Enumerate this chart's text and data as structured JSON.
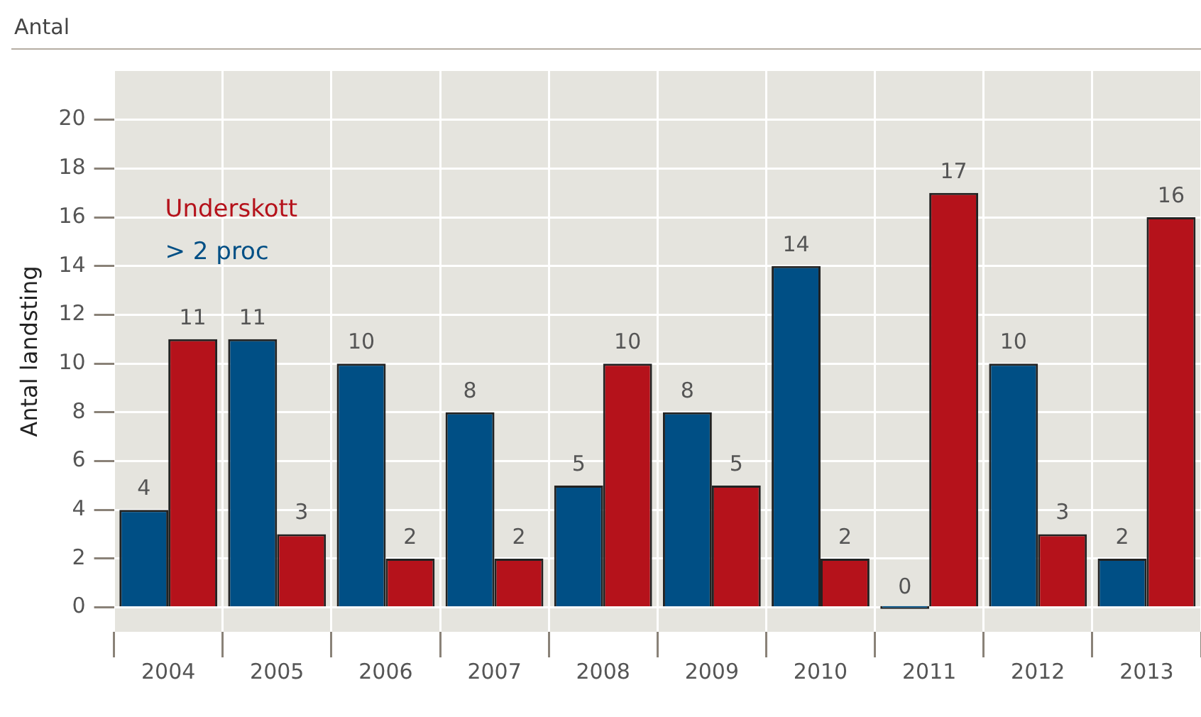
{
  "chart_data": {
    "type": "bar",
    "subtitle": "Antal",
    "ylabel": "Antal landsting",
    "categories": [
      "2004",
      "2005",
      "2006",
      "2007",
      "2008",
      "2009",
      "2010",
      "2011",
      "2012",
      "2013"
    ],
    "series": [
      {
        "name": "> 2 proc",
        "color": "#004f85",
        "values": [
          4,
          11,
          10,
          8,
          5,
          8,
          14,
          0,
          10,
          2
        ]
      },
      {
        "name": "Underskott",
        "color": "#b5121b",
        "values": [
          11,
          3,
          2,
          2,
          10,
          5,
          2,
          17,
          3,
          16
        ]
      }
    ],
    "ylim": [
      -1,
      22
    ],
    "yticks": [
      0,
      2,
      4,
      6,
      8,
      10,
      12,
      14,
      16,
      18,
      20
    ],
    "grid": true,
    "legend": "top left",
    "data_labels": true
  }
}
